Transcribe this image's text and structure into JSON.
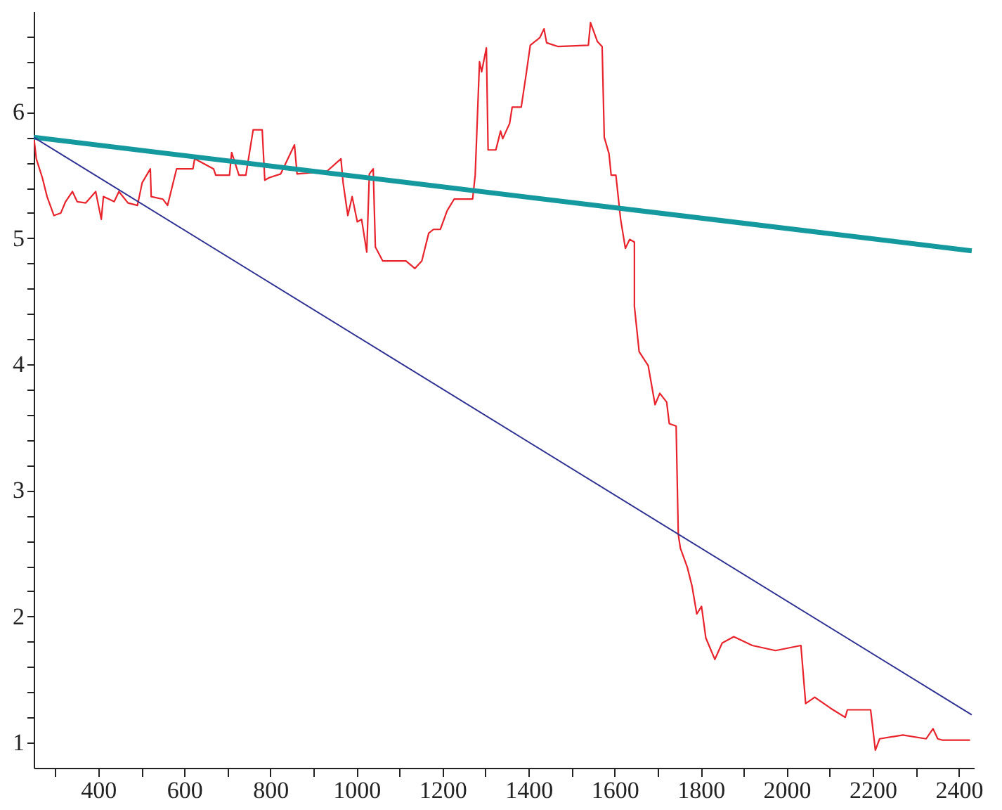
{
  "chart_data": {
    "type": "line",
    "xlim": [
      250,
      2435
    ],
    "ylim": [
      0.8,
      6.8
    ],
    "xticks": [
      {
        "value": 300,
        "label": null
      },
      400,
      {
        "value": 500,
        "label": null
      },
      600,
      {
        "value": 700,
        "label": null
      },
      800,
      {
        "value": 900,
        "label": null
      },
      1000,
      {
        "value": 1100,
        "label": null
      },
      1200,
      {
        "value": 1300,
        "label": null
      },
      1400,
      {
        "value": 1500,
        "label": null
      },
      1600,
      {
        "value": 1700,
        "label": null
      },
      1800,
      {
        "value": 1900,
        "label": null
      },
      2000,
      {
        "value": 2100,
        "label": null
      },
      2200,
      {
        "value": 2300,
        "label": null
      },
      2400
    ],
    "yticks": [
      1,
      {
        "value": 1.2,
        "label": null
      },
      {
        "value": 1.4,
        "label": null
      },
      {
        "value": 1.6,
        "label": null
      },
      {
        "value": 1.8,
        "label": null
      },
      2,
      {
        "value": 2.2,
        "label": null
      },
      {
        "value": 2.4,
        "label": null
      },
      {
        "value": 2.6,
        "label": null
      },
      {
        "value": 2.8,
        "label": null
      },
      3,
      {
        "value": 3.2,
        "label": null
      },
      {
        "value": 3.4,
        "label": null
      },
      {
        "value": 3.6,
        "label": null
      },
      {
        "value": 3.8,
        "label": null
      },
      4,
      {
        "value": 4.2,
        "label": null
      },
      {
        "value": 4.4,
        "label": null
      },
      {
        "value": 4.6,
        "label": null
      },
      {
        "value": 4.8,
        "label": null
      },
      5,
      {
        "value": 5.2,
        "label": null
      },
      {
        "value": 5.4,
        "label": null
      },
      {
        "value": 5.6,
        "label": null
      },
      {
        "value": 5.8,
        "label": null
      },
      6,
      {
        "value": 6.2,
        "label": null
      },
      {
        "value": 6.4,
        "label": null
      },
      {
        "value": 6.6,
        "label": null
      }
    ],
    "grid": false,
    "marker": "none",
    "line_style": "solid",
    "series": [
      {
        "color": "#e8232b",
        "x": [
          250,
          256,
          270,
          281,
          297,
          313,
          324,
          340,
          351,
          371,
          394,
          407,
          412,
          437,
          448,
          469,
          491,
          502,
          521,
          523,
          550,
          561,
          582,
          620,
          624,
          668,
          673,
          705,
          710,
          727,
          743,
          760,
          781,
          787,
          797,
          824,
          856,
          862,
          931,
          964,
          969,
          980,
          990,
          1002,
          1012,
          1024,
          1030,
          1039,
          1044,
          1061,
          1115,
          1136,
          1152,
          1168,
          1179,
          1195,
          1211,
          1227,
          1243,
          1270,
          1276,
          1286,
          1291,
          1302,
          1306,
          1324,
          1335,
          1340,
          1356,
          1362,
          1383,
          1394,
          1404,
          1426,
          1436,
          1442,
          1469,
          1539,
          1544,
          1560,
          1571,
          1576,
          1587,
          1592,
          1603,
          1614,
          1625,
          1635,
          1646,
          1646,
          1657,
          1678,
          1694,
          1705,
          1721,
          1727,
          1743,
          1748,
          1753,
          1769,
          1780,
          1791,
          1802,
          1812,
          1833,
          1850,
          1877,
          1920,
          1974,
          2033,
          2044,
          2065,
          2103,
          2136,
          2141,
          2195,
          2206,
          2216,
          2270,
          2324,
          2340,
          2351,
          2361,
          2426
        ],
        "values": [
          5.81,
          5.63,
          5.48,
          5.33,
          5.18,
          5.2,
          5.29,
          5.37,
          5.29,
          5.28,
          5.37,
          5.15,
          5.33,
          5.29,
          5.37,
          5.28,
          5.26,
          5.44,
          5.55,
          5.33,
          5.31,
          5.26,
          5.55,
          5.55,
          5.63,
          5.55,
          5.5,
          5.5,
          5.68,
          5.5,
          5.5,
          5.86,
          5.86,
          5.46,
          5.48,
          5.51,
          5.74,
          5.51,
          5.53,
          5.63,
          5.44,
          5.18,
          5.33,
          5.13,
          5.15,
          4.89,
          5.51,
          5.55,
          4.93,
          4.82,
          4.82,
          4.76,
          4.82,
          5.04,
          5.07,
          5.07,
          5.22,
          5.31,
          5.31,
          5.31,
          5.5,
          6.4,
          6.32,
          6.51,
          5.7,
          5.7,
          5.85,
          5.79,
          5.91,
          6.04,
          6.04,
          6.29,
          6.53,
          6.59,
          6.66,
          6.55,
          6.52,
          6.53,
          6.71,
          6.56,
          6.52,
          5.8,
          5.67,
          5.5,
          5.5,
          5.15,
          4.92,
          4.99,
          4.97,
          4.46,
          4.1,
          3.99,
          3.68,
          3.77,
          3.7,
          3.53,
          3.51,
          2.65,
          2.54,
          2.39,
          2.24,
          2.02,
          2.08,
          1.83,
          1.66,
          1.79,
          1.84,
          1.77,
          1.73,
          1.77,
          1.31,
          1.36,
          1.27,
          1.2,
          1.26,
          1.26,
          0.94,
          1.03,
          1.06,
          1.03,
          1.11,
          1.03,
          1.02,
          1.02
        ]
      },
      {
        "color": "#13999e",
        "x": [
          250,
          2430
        ],
        "values": [
          5.8,
          4.9
        ]
      },
      {
        "color": "#2e3192",
        "x": [
          250,
          2430
        ],
        "values": [
          5.8,
          1.22
        ]
      }
    ]
  }
}
